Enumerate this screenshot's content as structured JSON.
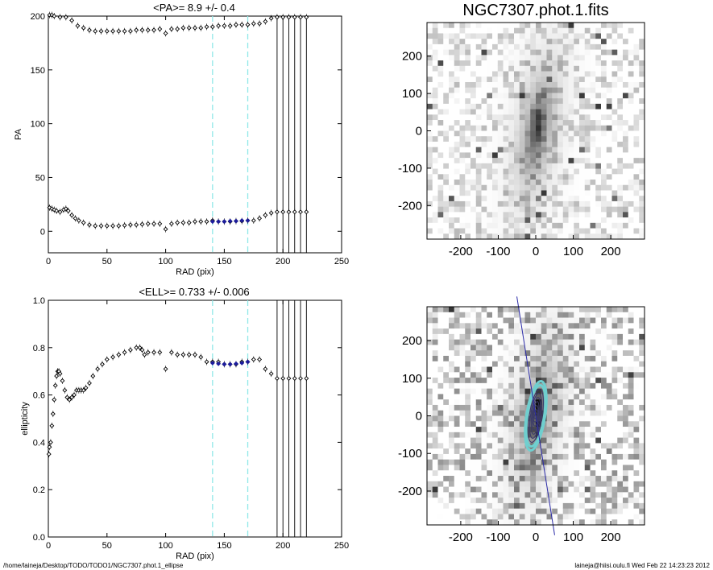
{
  "footer": {
    "path": "/home/laineja/Desktop/TODO/TODO1/NGC7307.phot.1_ellipse",
    "user_stamp": "laineja@hiisi.oulu.fi  Wed Feb 22 14:23:23 2012"
  },
  "colors": {
    "marker": "#000000",
    "highlight": "#1c1c9c",
    "dashed": "#90e8e8",
    "contour_outer": "#6fcfcf",
    "fit_line": "#2a2aa8"
  },
  "chart_data": [
    {
      "type": "scatter",
      "title": "<PA>=   8.9 +/-   0.4",
      "xlabel": "RAD (pix)",
      "ylabel": "PA",
      "xlim": [
        0,
        250
      ],
      "ylim": [
        -20,
        200
      ],
      "x_ticks": [
        "0",
        "50",
        "100",
        "150",
        "200",
        "250"
      ],
      "y_ticks": [
        "0",
        "50",
        "100",
        "150",
        "200"
      ],
      "vlines_dashed": [
        140,
        170
      ],
      "vlines_solid": [
        195,
        200,
        205,
        210,
        215,
        220
      ],
      "series": [
        {
          "points": [
            [
              1,
              22
            ],
            [
              3,
              21
            ],
            [
              5,
              20
            ],
            [
              7,
              19
            ],
            [
              10,
              18
            ],
            [
              13,
              20
            ],
            [
              15,
              21
            ],
            [
              17,
              19
            ],
            [
              20,
              15
            ],
            [
              23,
              12
            ],
            [
              26,
              10
            ],
            [
              30,
              8
            ],
            [
              35,
              6
            ],
            [
              40,
              5
            ],
            [
              45,
              5
            ],
            [
              50,
              5
            ],
            [
              55,
              5
            ],
            [
              60,
              5
            ],
            [
              65,
              5.5
            ],
            [
              70,
              6
            ],
            [
              75,
              6
            ],
            [
              80,
              6.5
            ],
            [
              85,
              7
            ],
            [
              90,
              7
            ],
            [
              95,
              7
            ],
            [
              100,
              2
            ],
            [
              105,
              7
            ],
            [
              110,
              8
            ],
            [
              115,
              8
            ],
            [
              120,
              8
            ],
            [
              125,
              9
            ],
            [
              130,
              9
            ],
            [
              135,
              9
            ],
            [
              140,
              10
            ],
            [
              145,
              9
            ],
            [
              150,
              9
            ],
            [
              155,
              9
            ],
            [
              160,
              9.5
            ],
            [
              165,
              9.5
            ],
            [
              170,
              10
            ],
            [
              175,
              10
            ],
            [
              180,
              12
            ],
            [
              185,
              15
            ],
            [
              190,
              17
            ],
            [
              195,
              18
            ],
            [
              200,
              18
            ],
            [
              205,
              18
            ],
            [
              210,
              18
            ],
            [
              215,
              18
            ],
            [
              220,
              18
            ]
          ]
        },
        {
          "points": [
            [
              1,
              201
            ],
            [
              3,
              201
            ],
            [
              5,
              200
            ],
            [
              10,
              199
            ],
            [
              15,
              199
            ],
            [
              20,
              196
            ],
            [
              25,
              191
            ],
            [
              30,
              189
            ],
            [
              35,
              187
            ],
            [
              40,
              186
            ],
            [
              45,
              186
            ],
            [
              50,
              186
            ],
            [
              55,
              186
            ],
            [
              60,
              186
            ],
            [
              65,
              186
            ],
            [
              70,
              186
            ],
            [
              75,
              187
            ],
            [
              80,
              187
            ],
            [
              85,
              187
            ],
            [
              90,
              187
            ],
            [
              95,
              188
            ],
            [
              100,
              184
            ],
            [
              105,
              188
            ],
            [
              110,
              188
            ],
            [
              115,
              189
            ],
            [
              120,
              189
            ],
            [
              125,
              189
            ],
            [
              130,
              189
            ],
            [
              135,
              190
            ],
            [
              140,
              190
            ],
            [
              145,
              191
            ],
            [
              150,
              191
            ],
            [
              155,
              191
            ],
            [
              160,
              192
            ],
            [
              165,
              192
            ],
            [
              170,
              192
            ],
            [
              175,
              193
            ],
            [
              180,
              193
            ],
            [
              185,
              195
            ],
            [
              190,
              198
            ],
            [
              195,
              199
            ],
            [
              200,
              199
            ],
            [
              205,
              199
            ],
            [
              210,
              199
            ],
            [
              215,
              199
            ],
            [
              220,
              199
            ]
          ]
        }
      ],
      "highlight": {
        "points": [
          [
            140,
            9
          ],
          [
            145,
            9
          ],
          [
            150,
            9
          ],
          [
            155,
            9.5
          ],
          [
            160,
            9.5
          ],
          [
            165,
            10
          ],
          [
            170,
            10
          ]
        ]
      }
    },
    {
      "type": "scatter",
      "title": "<ELL>= 0.733 +/-  0.006",
      "xlabel": "RAD (pix)",
      "ylabel": "ellipticity",
      "xlim": [
        0,
        250
      ],
      "ylim": [
        0,
        1
      ],
      "x_ticks": [
        "0",
        "50",
        "100",
        "150",
        "200",
        "250"
      ],
      "y_ticks": [
        "0.0",
        "0.2",
        "0.4",
        "0.6",
        "0.8",
        "1.0"
      ],
      "vlines_dashed": [
        140,
        170
      ],
      "vlines_solid": [
        195,
        200,
        205,
        210,
        215,
        220
      ],
      "series": [
        {
          "points": [
            [
              0.5,
              0.35
            ],
            [
              1,
              0.38
            ],
            [
              2,
              0.4
            ],
            [
              3,
              0.47
            ],
            [
              4,
              0.52
            ],
            [
              5,
              0.58
            ],
            [
              6,
              0.64
            ],
            [
              7,
              0.68
            ],
            [
              8,
              0.7
            ],
            [
              9,
              0.7
            ],
            [
              10,
              0.69
            ],
            [
              12,
              0.66
            ],
            [
              14,
              0.62
            ],
            [
              16,
              0.59
            ],
            [
              18,
              0.58
            ],
            [
              20,
              0.59
            ],
            [
              22,
              0.6
            ],
            [
              24,
              0.62
            ],
            [
              26,
              0.62
            ],
            [
              28,
              0.62
            ],
            [
              30,
              0.62
            ],
            [
              32,
              0.63
            ],
            [
              35,
              0.65
            ],
            [
              38,
              0.68
            ],
            [
              42,
              0.71
            ],
            [
              46,
              0.73
            ],
            [
              50,
              0.75
            ],
            [
              55,
              0.76
            ],
            [
              60,
              0.77
            ],
            [
              65,
              0.78
            ],
            [
              70,
              0.79
            ],
            [
              75,
              0.8
            ],
            [
              78,
              0.8
            ],
            [
              80,
              0.79
            ],
            [
              82,
              0.77
            ],
            [
              85,
              0.78
            ],
            [
              90,
              0.78
            ],
            [
              95,
              0.78
            ],
            [
              100,
              0.71
            ],
            [
              105,
              0.78
            ],
            [
              110,
              0.77
            ],
            [
              115,
              0.77
            ],
            [
              120,
              0.77
            ],
            [
              125,
              0.77
            ],
            [
              130,
              0.76
            ],
            [
              135,
              0.74
            ],
            [
              140,
              0.74
            ],
            [
              145,
              0.74
            ],
            [
              150,
              0.73
            ],
            [
              155,
              0.73
            ],
            [
              160,
              0.73
            ],
            [
              165,
              0.74
            ],
            [
              170,
              0.74
            ],
            [
              175,
              0.75
            ],
            [
              180,
              0.75
            ],
            [
              185,
              0.71
            ],
            [
              190,
              0.69
            ],
            [
              195,
              0.67
            ],
            [
              200,
              0.67
            ],
            [
              205,
              0.67
            ],
            [
              210,
              0.67
            ],
            [
              215,
              0.67
            ],
            [
              220,
              0.67
            ]
          ]
        }
      ],
      "highlight": {
        "points": [
          [
            140,
            0.735
          ],
          [
            145,
            0.732
          ],
          [
            150,
            0.73
          ],
          [
            155,
            0.73
          ],
          [
            160,
            0.732
          ],
          [
            165,
            0.735
          ],
          [
            170,
            0.74
          ]
        ]
      }
    },
    {
      "type": "heatmap",
      "title": "NGC7307.phot.1.fits",
      "xlim": [
        -290,
        290
      ],
      "ylim": [
        -290,
        290
      ],
      "x_ticks": [
        "-200",
        "-100",
        "0",
        "100",
        "200"
      ],
      "y_ticks": [
        "-200",
        "-100",
        "0",
        "100",
        "200"
      ]
    },
    {
      "type": "heatmap",
      "title": "",
      "xlim": [
        -290,
        290
      ],
      "ylim": [
        -290,
        290
      ],
      "x_ticks": [
        "-200",
        "-100",
        "0",
        "100",
        "200"
      ],
      "y_ticks": [
        "-200",
        "-100",
        "0",
        "100",
        "200"
      ],
      "ellipses": [
        {
          "rad": 170,
          "ell": 0.735,
          "pa": 9
        },
        {
          "rad": 150,
          "ell": 0.73,
          "pa": 9
        },
        {
          "rad": 130,
          "ell": 0.76,
          "pa": 9
        },
        {
          "rad": 110,
          "ell": 0.77,
          "pa": 8
        },
        {
          "rad": 90,
          "ell": 0.78,
          "pa": 7
        },
        {
          "rad": 70,
          "ell": 0.79,
          "pa": 6
        },
        {
          "rad": 50,
          "ell": 0.75,
          "pa": 5
        },
        {
          "rad": 30,
          "ell": 0.62,
          "pa": 8
        },
        {
          "rad": 15,
          "ell": 0.6,
          "pa": 20
        }
      ]
    }
  ]
}
